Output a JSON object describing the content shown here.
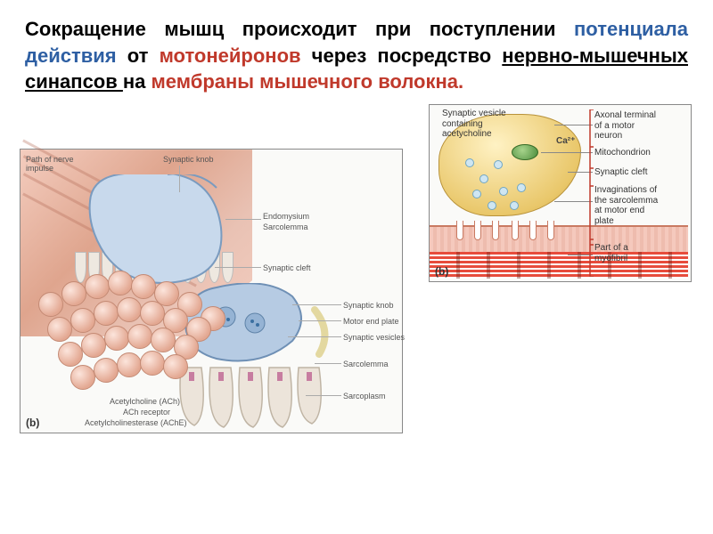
{
  "heading": {
    "parts": [
      {
        "text": "Сокращение мышц происходит при поступлении ",
        "cls": ""
      },
      {
        "text": "потенциала действия",
        "cls": "blue"
      },
      {
        "text": " от ",
        "cls": ""
      },
      {
        "text": "мотонейронов",
        "cls": "red"
      },
      {
        "text": " через посредство ",
        "cls": ""
      },
      {
        "text": "нервно-мышечных синапсов ",
        "cls": "",
        "underline": true
      },
      {
        "text": "на ",
        "cls": ""
      },
      {
        "text": "мембраны мышечного волокна.",
        "cls": "red"
      }
    ],
    "font_size": 22,
    "colors": {
      "blue": "#2e5fa3",
      "red": "#c0392b",
      "black": "#000"
    }
  },
  "figure_left": {
    "panel_label": "(b)",
    "labels": {
      "path": "Path of nerve\nimpulse",
      "synaptic_knob": "Synaptic knob",
      "endomysium": "Endomysium",
      "sarcolemma": "Sarcolemma",
      "synaptic_cleft": "Synaptic cleft",
      "synaptic_knob2": "Synaptic knob",
      "motor_end_plate": "Motor end plate",
      "synaptic_vesicles": "Synaptic vesicles",
      "sarcolemma2": "Sarcolemma",
      "sarcoplasm": "Sarcoplasm",
      "ach": "Acetylcholine (ACh)",
      "ach_receptor": "ACh receptor",
      "ache": "Acetylcholinesterase (AChE)"
    },
    "colors": {
      "muscle_light": "#f4cdbf",
      "muscle_dark": "#dfa58e",
      "knob_fill": "#c8d9ec",
      "knob_border": "#7a9bbf",
      "bundle_light": "#fce5dc",
      "bundle_dark": "#e3a892"
    }
  },
  "figure_right": {
    "panel_label": "(b)",
    "title": "Synaptic vesicle\ncontaining\nacetycholine",
    "labels": {
      "axonal": "Axonal terminal\nof a motor\nneuron",
      "mitochondrion": "Mitochondrion",
      "synaptic_cleft": "Synaptic cleft",
      "invaginations": "Invaginations of\nthe sarcolemma\nat motor end\nplate",
      "myofibril": "Part of a\nmyofibril"
    },
    "ca_label": "Ca²⁺",
    "colors": {
      "terminal_light": "#fff2c4",
      "terminal_dark": "#caa13c",
      "mito_light": "#a7d48c",
      "mito_dark": "#4a8b3a",
      "vesicle": "#cfe6f2",
      "plate": "#f5c9bd",
      "plate_border": "#c97a62",
      "myofibril": "#e74c3c"
    }
  }
}
